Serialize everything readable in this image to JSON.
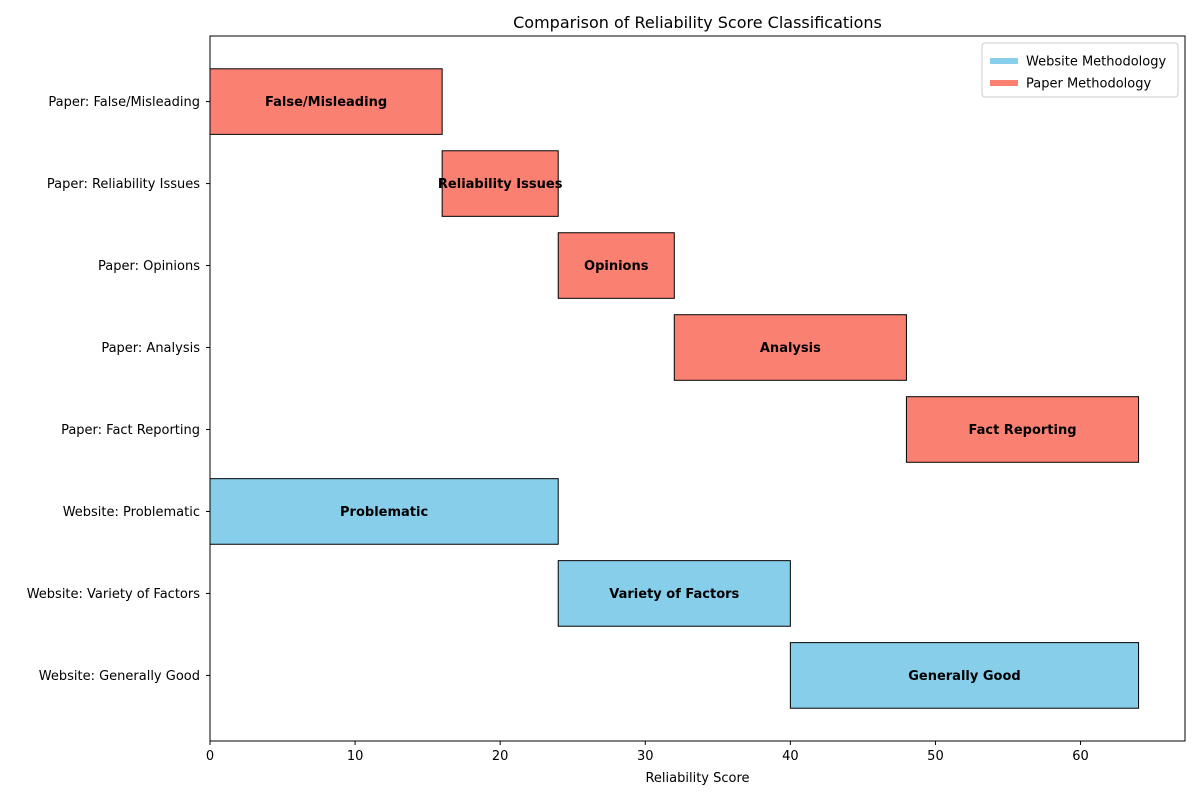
{
  "chart_data": {
    "type": "bar",
    "orientation": "horizontal",
    "title": "Comparison of Reliability Score Classifications",
    "xlabel": "Reliability Score",
    "ylabel": "",
    "xlim": [
      0,
      67.2
    ],
    "xticks": [
      0,
      10,
      20,
      30,
      40,
      50,
      60
    ],
    "grid": false,
    "legend_position": "top-right",
    "colors": {
      "Website Methodology": "#87CEEB",
      "Paper Methodology": "#FA8072",
      "edge": "#000000"
    },
    "legend": [
      {
        "name": "Website Methodology",
        "color": "#87CEEB"
      },
      {
        "name": "Paper Methodology",
        "color": "#FA8072"
      }
    ],
    "bars": [
      {
        "label": "Website: Generally Good",
        "text": "Generally Good",
        "start": 40,
        "end": 64,
        "series": "Website Methodology"
      },
      {
        "label": "Website: Variety of Factors",
        "text": "Variety of Factors",
        "start": 24,
        "end": 40,
        "series": "Website Methodology"
      },
      {
        "label": "Website: Problematic",
        "text": "Problematic",
        "start": 0,
        "end": 24,
        "series": "Website Methodology"
      },
      {
        "label": "Paper: Fact Reporting",
        "text": "Fact Reporting",
        "start": 48,
        "end": 64,
        "series": "Paper Methodology"
      },
      {
        "label": "Paper: Analysis",
        "text": "Analysis",
        "start": 32,
        "end": 48,
        "series": "Paper Methodology"
      },
      {
        "label": "Paper: Opinions",
        "text": "Opinions",
        "start": 24,
        "end": 32,
        "series": "Paper Methodology"
      },
      {
        "label": "Paper: Reliability Issues",
        "text": "Reliability Issues",
        "start": 16,
        "end": 24,
        "series": "Paper Methodology"
      },
      {
        "label": "Paper: False/Misleading",
        "text": "False/Misleading",
        "start": 0,
        "end": 16,
        "series": "Paper Methodology"
      }
    ]
  }
}
